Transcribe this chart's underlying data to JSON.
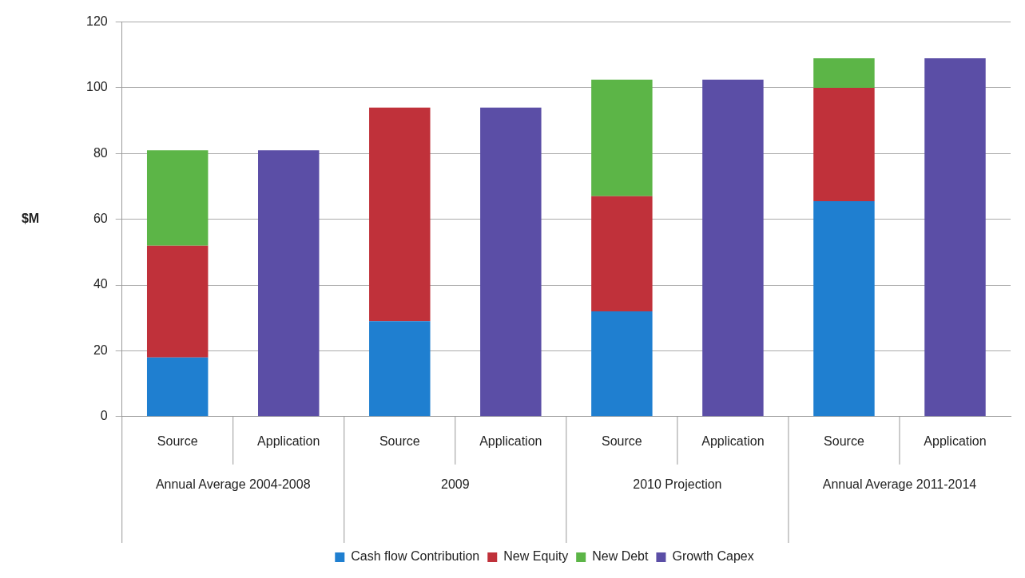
{
  "chart_data": {
    "type": "bar",
    "stacked": true,
    "ylabel": "$M",
    "categories": [
      "Source",
      "Application",
      "Source",
      "Application",
      "Source",
      "Application",
      "Source",
      "Application"
    ],
    "annotations": [
      "Annual Average 2004-2008",
      "2009",
      "2010 Projection",
      "Annual Average 2011-2014"
    ],
    "series": [
      {
        "name": "Cash flow Contribution",
        "color": "#1f7fd0",
        "values": [
          18,
          null,
          29,
          null,
          32,
          null,
          65.5,
          null
        ]
      },
      {
        "name": "New Equity",
        "color": "#c0313a",
        "values": [
          34,
          null,
          65,
          null,
          35,
          null,
          34.5,
          null
        ]
      },
      {
        "name": "New Debt",
        "color": "#5cb547",
        "values": [
          29,
          null,
          null,
          null,
          35.5,
          null,
          9,
          null
        ]
      },
      {
        "name": "Growth Capex",
        "color": "#5b4ea6",
        "values": [
          null,
          81,
          null,
          94,
          null,
          102.5,
          null,
          109
        ]
      }
    ],
    "ylim": [
      0,
      120
    ],
    "yticks": [
      0,
      20,
      40,
      60,
      80,
      100,
      120
    ],
    "grid": "y",
    "legend": "bottom"
  }
}
